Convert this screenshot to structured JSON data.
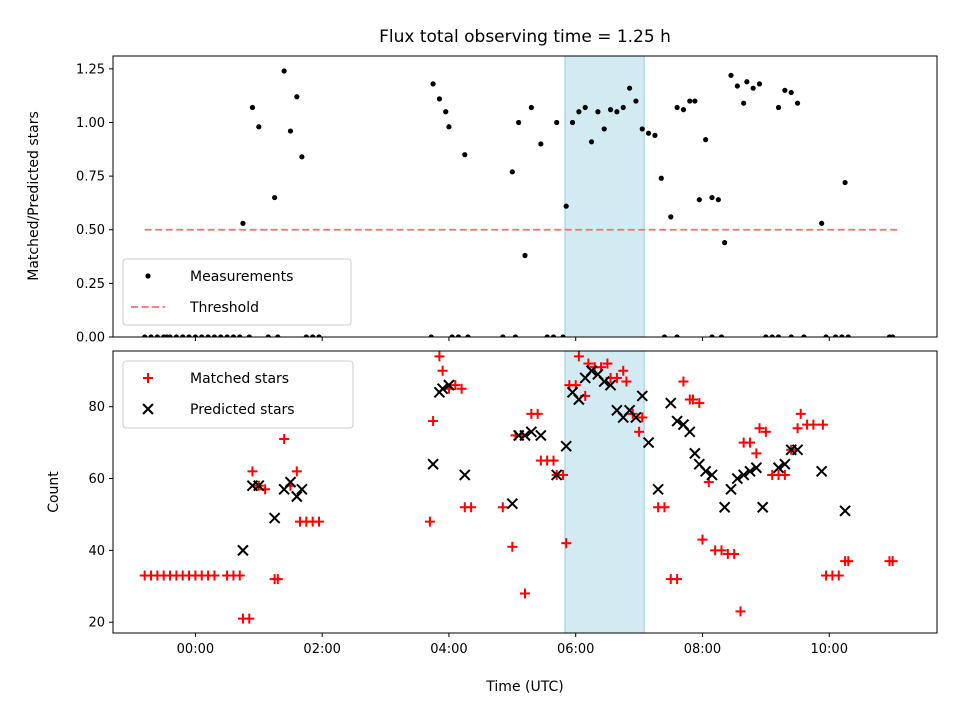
{
  "chart_data": [
    {
      "type": "scatter",
      "title": "Flux total observing time = 1.25 h",
      "xlabel": "",
      "ylabel": "Matched/Predicted stars",
      "xlim": [
        -1.3,
        11.7
      ],
      "ylim": [
        0,
        1.31
      ],
      "x_ticks": [
        0,
        2,
        4,
        6,
        8,
        10
      ],
      "x_tick_labels": [
        "",
        "",
        "",
        "",
        "",
        ""
      ],
      "y_ticks": [
        0,
        0.25,
        0.5,
        0.75,
        1.0,
        1.25
      ],
      "y_tick_labels": [
        "0.00",
        "0.25",
        "0.50",
        "0.75",
        "1.00",
        "1.25"
      ],
      "highlight_span": {
        "x0": 5.83,
        "x1": 7.08,
        "color": "#add8e6"
      },
      "legend": {
        "location": "lower-left",
        "entries": [
          "Measurements",
          "Threshold"
        ]
      },
      "series": [
        {
          "name": "Measurements",
          "marker": "dot",
          "color": "#000000",
          "points": [
            [
              -0.8,
              0
            ],
            [
              -0.7,
              0
            ],
            [
              -0.6,
              0
            ],
            [
              -0.5,
              0
            ],
            [
              -0.45,
              0
            ],
            [
              -0.4,
              0
            ],
            [
              -0.3,
              0
            ],
            [
              -0.2,
              0
            ],
            [
              -0.1,
              0
            ],
            [
              0,
              0
            ],
            [
              0.1,
              0
            ],
            [
              0.2,
              0
            ],
            [
              0.3,
              0
            ],
            [
              0.4,
              0
            ],
            [
              0.5,
              0
            ],
            [
              0.6,
              0
            ],
            [
              0.7,
              0
            ],
            [
              0.75,
              0.53
            ],
            [
              0.9,
              1.07
            ],
            [
              1.0,
              0.98
            ],
            [
              1.25,
              0.65
            ],
            [
              1.4,
              1.24
            ],
            [
              1.5,
              0.96
            ],
            [
              1.6,
              1.12
            ],
            [
              1.68,
              0.84
            ],
            [
              0.85,
              0
            ],
            [
              1.15,
              0
            ],
            [
              1.3,
              0
            ],
            [
              1.75,
              0
            ],
            [
              1.85,
              0
            ],
            [
              1.95,
              0
            ],
            [
              3.75,
              1.18
            ],
            [
              3.85,
              1.11
            ],
            [
              3.95,
              1.05
            ],
            [
              4.0,
              0.98
            ],
            [
              4.25,
              0.85
            ],
            [
              3.72,
              0
            ],
            [
              4.05,
              0
            ],
            [
              4.15,
              0
            ],
            [
              4.3,
              0
            ],
            [
              5.0,
              0.77
            ],
            [
              5.1,
              1.0
            ],
            [
              5.2,
              0.38
            ],
            [
              5.3,
              1.07
            ],
            [
              5.45,
              0.9
            ],
            [
              5.7,
              1.0
            ],
            [
              5.85,
              0.61
            ],
            [
              5.95,
              1.0
            ],
            [
              6.05,
              1.05
            ],
            [
              6.15,
              1.07
            ],
            [
              6.25,
              0.91
            ],
            [
              6.35,
              1.05
            ],
            [
              6.45,
              0.97
            ],
            [
              6.55,
              1.06
            ],
            [
              6.65,
              1.05
            ],
            [
              6.75,
              1.07
            ],
            [
              6.85,
              1.16
            ],
            [
              6.95,
              1.1
            ],
            [
              7.05,
              0.97
            ],
            [
              7.15,
              0.95
            ],
            [
              7.25,
              0.94
            ],
            [
              7.35,
              0.74
            ],
            [
              7.5,
              0.56
            ],
            [
              7.6,
              1.07
            ],
            [
              7.7,
              1.06
            ],
            [
              7.8,
              1.1
            ],
            [
              7.88,
              1.1
            ],
            [
              7.95,
              0.64
            ],
            [
              8.05,
              0.92
            ],
            [
              8.15,
              0.65
            ],
            [
              8.25,
              0.64
            ],
            [
              8.35,
              0.44
            ],
            [
              8.45,
              1.22
            ],
            [
              8.55,
              1.17
            ],
            [
              8.65,
              1.09
            ],
            [
              8.7,
              1.19
            ],
            [
              8.8,
              1.16
            ],
            [
              8.9,
              1.18
            ],
            [
              9.2,
              1.07
            ],
            [
              9.3,
              1.15
            ],
            [
              9.4,
              1.14
            ],
            [
              9.5,
              1.09
            ],
            [
              9.88,
              0.53
            ],
            [
              10.25,
              0.72
            ],
            [
              4.85,
              0
            ],
            [
              5.05,
              0
            ],
            [
              5.55,
              0
            ],
            [
              5.65,
              0
            ],
            [
              5.8,
              0
            ],
            [
              7.4,
              0
            ],
            [
              7.6,
              0
            ],
            [
              8.15,
              0
            ],
            [
              8.3,
              0
            ],
            [
              9.0,
              0
            ],
            [
              9.1,
              0
            ],
            [
              9.2,
              0
            ],
            [
              9.4,
              0
            ],
            [
              9.6,
              0
            ],
            [
              9.95,
              0
            ],
            [
              10.1,
              0
            ],
            [
              10.2,
              0
            ],
            [
              10.3,
              0
            ],
            [
              10.95,
              0
            ],
            [
              11.0,
              0
            ]
          ]
        },
        {
          "name": "Threshold",
          "marker": "dashed-line",
          "color": "#ff6e6e",
          "x": [
            -0.8,
            11.1
          ],
          "y": [
            0.5,
            0.5
          ]
        }
      ]
    },
    {
      "type": "scatter",
      "title": "",
      "xlabel": "Time (UTC)",
      "ylabel": "Count",
      "xlim": [
        -1.3,
        11.7
      ],
      "ylim": [
        17,
        95.5
      ],
      "x_ticks": [
        0,
        2,
        4,
        6,
        8,
        10
      ],
      "x_tick_labels": [
        "00:00",
        "02:00",
        "04:00",
        "06:00",
        "08:00",
        "10:00"
      ],
      "y_ticks": [
        20,
        40,
        60,
        80
      ],
      "y_tick_labels": [
        "20",
        "40",
        "60",
        "80"
      ],
      "highlight_span": {
        "x0": 5.83,
        "x1": 7.08,
        "color": "#add8e6"
      },
      "legend": {
        "location": "upper-left",
        "entries": [
          "Matched stars",
          "Predicted stars"
        ]
      },
      "series": [
        {
          "name": "Matched stars",
          "marker": "plus",
          "color": "#ff0000",
          "points": [
            [
              -0.8,
              33
            ],
            [
              -0.7,
              33
            ],
            [
              -0.6,
              33
            ],
            [
              -0.5,
              33
            ],
            [
              -0.4,
              33
            ],
            [
              -0.3,
              33
            ],
            [
              -0.2,
              33
            ],
            [
              -0.1,
              33
            ],
            [
              0,
              33
            ],
            [
              0.1,
              33
            ],
            [
              0.2,
              33
            ],
            [
              0.3,
              33
            ],
            [
              0.5,
              33
            ],
            [
              0.6,
              33
            ],
            [
              0.7,
              33
            ],
            [
              0.75,
              21
            ],
            [
              0.85,
              21
            ],
            [
              0.9,
              62
            ],
            [
              1.0,
              58
            ],
            [
              1.1,
              57
            ],
            [
              1.25,
              32
            ],
            [
              1.3,
              32
            ],
            [
              1.4,
              71
            ],
            [
              1.5,
              58
            ],
            [
              1.6,
              62
            ],
            [
              1.65,
              48
            ],
            [
              1.75,
              48
            ],
            [
              1.85,
              48
            ],
            [
              1.95,
              48
            ],
            [
              3.7,
              48
            ],
            [
              3.75,
              76
            ],
            [
              3.85,
              94
            ],
            [
              3.9,
              90
            ],
            [
              4.0,
              85
            ],
            [
              4.1,
              86
            ],
            [
              4.2,
              85
            ],
            [
              4.25,
              52
            ],
            [
              4.35,
              52
            ],
            [
              4.85,
              52
            ],
            [
              5.0,
              41
            ],
            [
              5.05,
              72
            ],
            [
              5.15,
              72
            ],
            [
              5.2,
              28
            ],
            [
              5.3,
              78
            ],
            [
              5.4,
              78
            ],
            [
              5.45,
              65
            ],
            [
              5.55,
              65
            ],
            [
              5.65,
              65
            ],
            [
              5.7,
              61
            ],
            [
              5.8,
              61
            ],
            [
              5.85,
              42
            ],
            [
              5.9,
              86
            ],
            [
              6.0,
              86
            ],
            [
              6.05,
              94
            ],
            [
              6.15,
              83
            ],
            [
              6.2,
              92
            ],
            [
              6.3,
              91
            ],
            [
              6.4,
              91
            ],
            [
              6.5,
              92
            ],
            [
              6.55,
              88
            ],
            [
              6.65,
              88
            ],
            [
              6.75,
              90
            ],
            [
              6.8,
              87
            ],
            [
              6.9,
              78
            ],
            [
              7.0,
              73
            ],
            [
              7.05,
              77
            ],
            [
              7.3,
              52
            ],
            [
              7.4,
              52
            ],
            [
              7.5,
              32
            ],
            [
              7.6,
              32
            ],
            [
              7.7,
              87
            ],
            [
              7.8,
              82
            ],
            [
              7.85,
              82
            ],
            [
              7.95,
              81
            ],
            [
              8.0,
              43
            ],
            [
              8.1,
              59
            ],
            [
              8.2,
              40
            ],
            [
              8.3,
              40
            ],
            [
              8.4,
              39
            ],
            [
              8.5,
              39
            ],
            [
              8.6,
              23
            ],
            [
              8.65,
              70
            ],
            [
              8.75,
              70
            ],
            [
              8.85,
              67
            ],
            [
              8.9,
              74
            ],
            [
              9.0,
              73
            ],
            [
              9.1,
              61
            ],
            [
              9.2,
              61
            ],
            [
              9.3,
              61
            ],
            [
              9.4,
              68
            ],
            [
              9.5,
              74
            ],
            [
              9.55,
              78
            ],
            [
              9.65,
              75
            ],
            [
              9.75,
              75
            ],
            [
              9.9,
              75
            ],
            [
              9.95,
              33
            ],
            [
              10.05,
              33
            ],
            [
              10.15,
              33
            ],
            [
              10.25,
              37
            ],
            [
              10.3,
              37
            ],
            [
              10.95,
              37
            ],
            [
              11.0,
              37
            ]
          ]
        },
        {
          "name": "Predicted stars",
          "marker": "cross",
          "color": "#000000",
          "points": [
            [
              0.75,
              40
            ],
            [
              0.9,
              58
            ],
            [
              1.0,
              58
            ],
            [
              1.25,
              49
            ],
            [
              1.4,
              57
            ],
            [
              1.5,
              59
            ],
            [
              1.6,
              55
            ],
            [
              1.68,
              57
            ],
            [
              3.75,
              64
            ],
            [
              3.85,
              84
            ],
            [
              3.9,
              85
            ],
            [
              4.0,
              86
            ],
            [
              4.25,
              61
            ],
            [
              5.0,
              53
            ],
            [
              5.1,
              72
            ],
            [
              5.2,
              72
            ],
            [
              5.3,
              73
            ],
            [
              5.45,
              72
            ],
            [
              5.7,
              61
            ],
            [
              5.85,
              69
            ],
            [
              5.95,
              84
            ],
            [
              6.05,
              82
            ],
            [
              6.15,
              88
            ],
            [
              6.25,
              90
            ],
            [
              6.35,
              89
            ],
            [
              6.45,
              87
            ],
            [
              6.55,
              86
            ],
            [
              6.65,
              79
            ],
            [
              6.75,
              77
            ],
            [
              6.85,
              79
            ],
            [
              6.95,
              77
            ],
            [
              7.05,
              83
            ],
            [
              7.15,
              70
            ],
            [
              7.3,
              57
            ],
            [
              7.5,
              81
            ],
            [
              7.6,
              76
            ],
            [
              7.7,
              75
            ],
            [
              7.8,
              73
            ],
            [
              7.88,
              67
            ],
            [
              7.95,
              64
            ],
            [
              8.05,
              62
            ],
            [
              8.15,
              61
            ],
            [
              8.35,
              52
            ],
            [
              8.45,
              57
            ],
            [
              8.55,
              60
            ],
            [
              8.65,
              61
            ],
            [
              8.75,
              62
            ],
            [
              8.85,
              63
            ],
            [
              8.95,
              52
            ],
            [
              9.2,
              63
            ],
            [
              9.3,
              64
            ],
            [
              9.4,
              68
            ],
            [
              9.5,
              68
            ],
            [
              9.88,
              62
            ],
            [
              10.25,
              51
            ]
          ]
        }
      ]
    }
  ]
}
